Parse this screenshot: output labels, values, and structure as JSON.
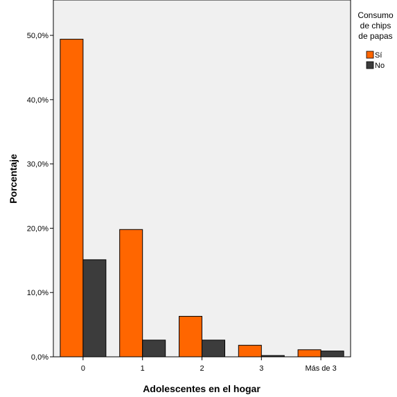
{
  "chart_data": {
    "type": "bar",
    "title": "",
    "xlabel": "Adolescentes en el hogar",
    "ylabel": "Porcentaje",
    "categories": [
      "0",
      "1",
      "2",
      "3",
      "Más de 3"
    ],
    "series": [
      {
        "name": "Sí",
        "values": [
          49.4,
          19.8,
          6.3,
          1.8,
          1.1
        ],
        "color": "#ff6600"
      },
      {
        "name": "No",
        "values": [
          15.1,
          2.6,
          2.6,
          0.2,
          0.9
        ],
        "color": "#3c3c3c"
      }
    ],
    "ylim": [
      0,
      55.5
    ],
    "yticks": [
      0,
      10,
      20,
      30,
      40,
      50
    ],
    "ytick_labels": [
      "0,0%",
      "10,0%",
      "20,0%",
      "30,0%",
      "40,0%",
      "50,0%"
    ],
    "grid": false,
    "plot_background": "#f0f0f0",
    "legend": {
      "title_lines": [
        "Consumo",
        "de chips",
        "de papas"
      ],
      "placement": "right-top"
    }
  }
}
